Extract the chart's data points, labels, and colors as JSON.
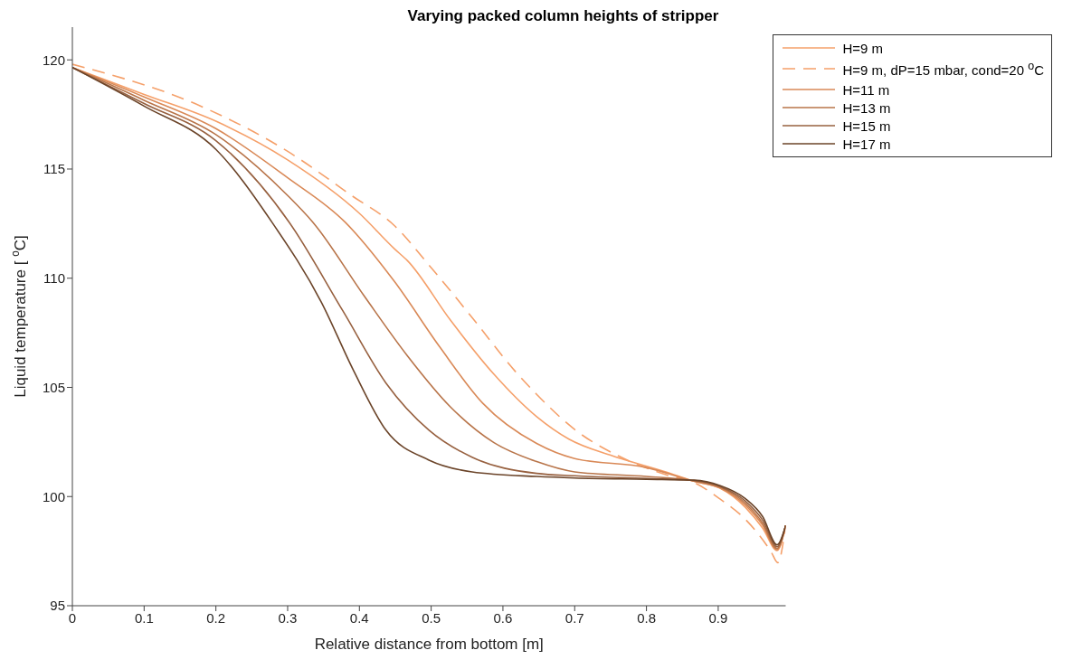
{
  "chart_data": {
    "type": "line",
    "title": "Varying packed column heights of stripper",
    "xlabel": "Relative distance from bottom [m]",
    "ylabel": "Liquid temperature [ $^{o}$C]",
    "xlim": [
      0,
      0.994
    ],
    "xticks": [
      0,
      0.1,
      0.2,
      0.3,
      0.4,
      0.5,
      0.6,
      0.7,
      0.8,
      0.9
    ],
    "ylim": [
      95,
      121.5
    ],
    "yticks": [
      95,
      100,
      105,
      110,
      115,
      120
    ],
    "grid": false,
    "legend": "top right",
    "marker": "none",
    "series": [
      {
        "name": "H=9 m",
        "color": "#f5a06a",
        "line_style": "solid",
        "x": [
          0,
          0.1,
          0.2,
          0.3,
          0.4,
          0.449,
          0.467,
          0.527,
          0.587,
          0.647,
          0.692,
          0.752,
          0.827,
          0.866,
          0.902,
          0.938,
          0.962,
          0.982,
          0.994
        ],
        "values": [
          119.65,
          118.42,
          117.19,
          115.42,
          112.97,
          111.34,
          110.8,
          108.07,
          105.62,
          103.66,
          102.63,
          101.87,
          101.13,
          100.7,
          100.39,
          99.5,
          98.55,
          97.53,
          98.68
        ]
      },
      {
        "name": "H=9 m, dP=15 mbar, cond=20  $^{o}$C",
        "color": "#f5a06a",
        "line_style": "dashed",
        "x": [
          0,
          0.179,
          0.299,
          0.389,
          0.449,
          0.497,
          0.557,
          0.617,
          0.647,
          0.704,
          0.761,
          0.827,
          0.866,
          0.902,
          0.938,
          0.974,
          0.983,
          0.994
        ],
        "values": [
          119.8,
          117.88,
          115.83,
          113.79,
          112.4,
          110.6,
          108.2,
          105.74,
          104.68,
          102.97,
          101.86,
          101.0,
          100.65,
          99.9,
          98.95,
          97.45,
          96.97,
          98.68
        ]
      },
      {
        "name": "H=11 m",
        "color": "#d98957",
        "line_style": "solid",
        "x": [
          0,
          0.1,
          0.2,
          0.3,
          0.38,
          0.449,
          0.512,
          0.572,
          0.647,
          0.7,
          0.8,
          0.866,
          0.902,
          0.938,
          0.962,
          0.982,
          0.994
        ],
        "values": [
          119.65,
          118.3,
          116.85,
          114.6,
          112.57,
          109.84,
          106.85,
          104.27,
          102.43,
          101.74,
          101.33,
          100.7,
          100.4,
          99.6,
          98.68,
          97.56,
          98.68
        ]
      },
      {
        "name": "H=13 m",
        "color": "#b87449",
        "line_style": "solid",
        "x": [
          0,
          0.1,
          0.2,
          0.3,
          0.335,
          0.407,
          0.467,
          0.527,
          0.587,
          0.647,
          0.7,
          0.8,
          0.866,
          0.902,
          0.938,
          0.962,
          0.982,
          0.994
        ],
        "values": [
          119.65,
          118.15,
          116.58,
          113.79,
          112.57,
          109.17,
          106.44,
          104.1,
          102.48,
          101.6,
          101.13,
          100.92,
          100.72,
          100.44,
          99.69,
          98.78,
          97.62,
          98.68
        ]
      },
      {
        "name": "H=15 m",
        "color": "#97603f",
        "line_style": "solid",
        "x": [
          0,
          0.1,
          0.2,
          0.302,
          0.377,
          0.437,
          0.497,
          0.557,
          0.647,
          0.7,
          0.8,
          0.866,
          0.902,
          0.938,
          0.962,
          0.982,
          0.994
        ],
        "values": [
          119.65,
          118.0,
          116.3,
          112.57,
          108.5,
          105.2,
          103.04,
          101.8,
          101.06,
          100.95,
          100.83,
          100.74,
          100.47,
          99.79,
          98.92,
          97.7,
          98.68
        ]
      },
      {
        "name": "H=17 m",
        "color": "#6b4429",
        "line_style": "solid",
        "x": [
          0,
          0.1,
          0.2,
          0.278,
          0.347,
          0.392,
          0.437,
          0.497,
          0.557,
          0.647,
          0.7,
          0.8,
          0.866,
          0.902,
          0.938,
          0.962,
          0.982,
          0.994
        ],
        "values": [
          119.65,
          117.88,
          115.9,
          112.57,
          108.9,
          105.76,
          103.04,
          101.67,
          101.13,
          100.92,
          100.85,
          100.79,
          100.75,
          100.51,
          99.9,
          99.08,
          97.79,
          98.68
        ]
      }
    ]
  }
}
